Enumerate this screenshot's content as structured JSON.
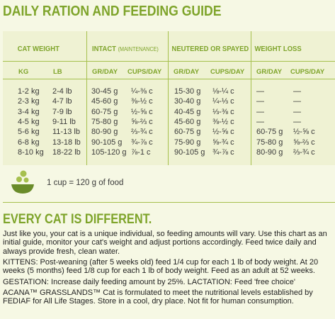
{
  "title": "DAILY RATION AND FEEDING GUIDE",
  "table": {
    "headers": {
      "cat_weight": "CAT WEIGHT",
      "intact": "INTACT",
      "intact_sub": "(MAINTENANCE)",
      "neutered": "NEUTERED OR SPAYED",
      "weight_loss": "WEIGHT LOSS"
    },
    "subheaders": {
      "kg": "KG",
      "lb": "LB",
      "intact_gr": "GR/DAY",
      "intact_cups": "CUPS/DAY",
      "neut_gr": "GR/DAY",
      "neut_cups": "CUPS/DAY",
      "wl_gr": "GR/DAY",
      "wl_cups": "CUPS/DAY"
    },
    "rows": [
      {
        "kg": "1-2 kg",
        "lb": "2-4 lb",
        "intact_gr": "30-45 g",
        "intact_cups": "¼-⅜ c",
        "neut_gr": "15-30 g",
        "neut_cups": "⅛-¼ c",
        "wl_gr": "—",
        "wl_cups": "—"
      },
      {
        "kg": "2-3 kg",
        "lb": "4-7 lb",
        "intact_gr": "45-60 g",
        "intact_cups": "⅜-½ c",
        "neut_gr": "30-40 g",
        "neut_cups": "¼-⅓ c",
        "wl_gr": "—",
        "wl_cups": "—"
      },
      {
        "kg": "3-4 kg",
        "lb": "7-9 lb",
        "intact_gr": "60-75 g",
        "intact_cups": "½-⅝ c",
        "neut_gr": "40-45 g",
        "neut_cups": "⅓-⅜ c",
        "wl_gr": "—",
        "wl_cups": "—"
      },
      {
        "kg": "4-5 kg",
        "lb": "9-11 lb",
        "intact_gr": "75-80 g",
        "intact_cups": "⅝-⅔ c",
        "neut_gr": "45-60 g",
        "neut_cups": "⅜-½ c",
        "wl_gr": "—",
        "wl_cups": "—"
      },
      {
        "kg": "5-6 kg",
        "lb": "11-13 lb",
        "intact_gr": "80-90 g",
        "intact_cups": "⅔-¾ c",
        "neut_gr": "60-75 g",
        "neut_cups": "½-⅝ c",
        "wl_gr": "60-75 g",
        "wl_cups": "½-⅝ c"
      },
      {
        "kg": "6-8 kg",
        "lb": "13-18 lb",
        "intact_gr": "90-105 g",
        "intact_cups": "¾-⅞ c",
        "neut_gr": "75-90 g",
        "neut_cups": "⅝-¾ c",
        "wl_gr": "75-80 g",
        "wl_cups": "⅝-⅔ c"
      },
      {
        "kg": "8-10 kg",
        "lb": "18-22 lb",
        "intact_gr": "105-120 g",
        "intact_cups": "⅞-1 c",
        "neut_gr": "90-105 g",
        "neut_cups": "¾-⅞ c",
        "wl_gr": "80-90 g",
        "wl_cups": "⅔-¾ c"
      }
    ]
  },
  "cup_note": "1 cup = 120 g of food",
  "section_title": "EVERY CAT IS DIFFERENT.",
  "paragraphs": {
    "intro": "Just like you, your cat is a unique individual, so feeding amounts will vary. Use this chart as an initial guide, monitor your cat's weight and adjust portions accordingly. Feed twice daily and always provide fresh, clean water.",
    "kittens": "KITTENS: Post-weaning (after 5 weeks old) feed 1/4 cup for each 1 lb of body weight. At 20 weeks (5 months) feed 1/8 cup for each 1 lb of body weight. Feed as an adult at 52 weeks.",
    "gestation": "GESTATION: Increase daily feeding amount by 25%. LACTATION: Feed 'free choice'",
    "acana": "ACANA™ GRASSLANDS™ Cat is formulated to meet the nutritional levels established by FEDIAF for All Life Stages. Store in a cool, dry place. Not fit for human consumption."
  },
  "colors": {
    "accent": "#7ea42a",
    "background": "#f6f8e4",
    "table_bg": "#eff2d3"
  }
}
